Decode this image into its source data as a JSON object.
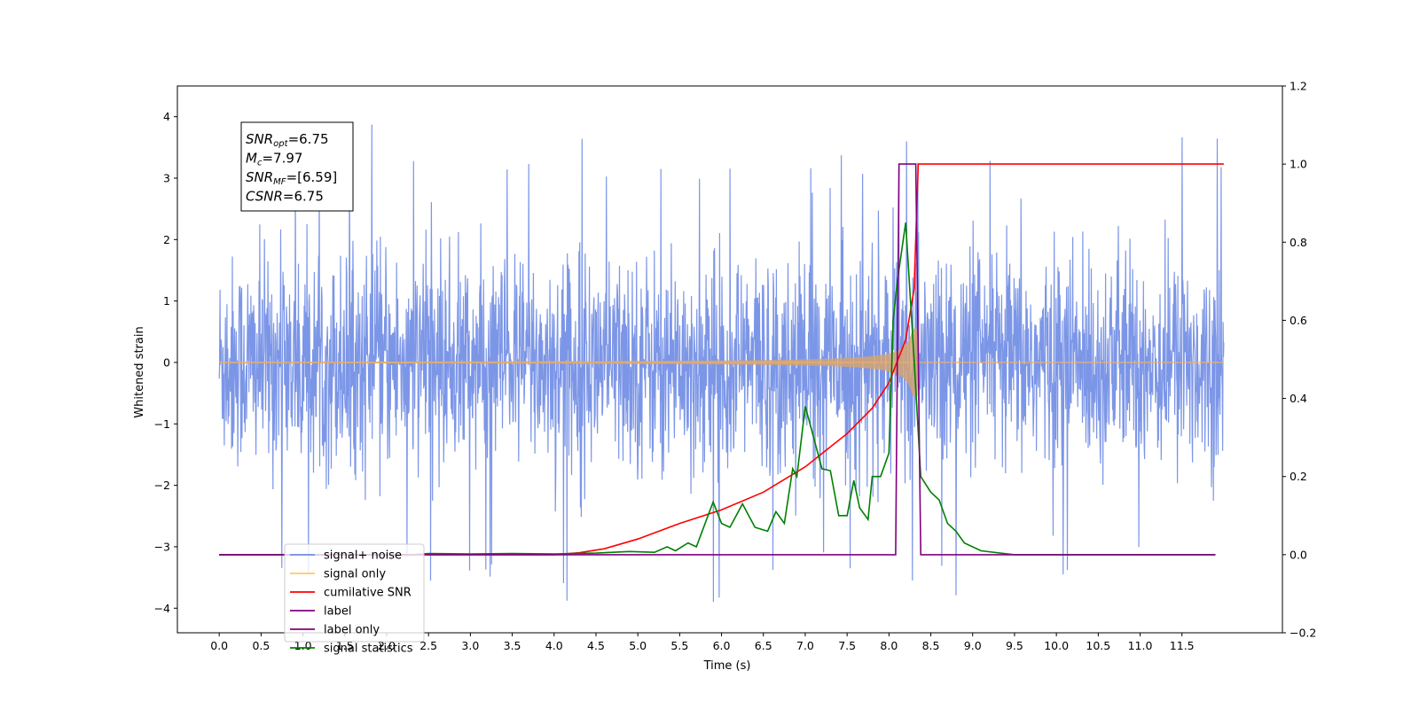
{
  "chart_data": {
    "type": "line",
    "xlabel": "Time (s)",
    "ylabel_left": "Whitened strain",
    "ylabel_right": "",
    "xlim": [
      -0.5,
      12.7
    ],
    "ylim_left": [
      -4.4,
      4.5
    ],
    "ylim_right": [
      -0.2,
      1.2
    ],
    "x_ticks": [
      "0.0",
      "0.5",
      "1.0",
      "1.5",
      "2.0",
      "2.5",
      "3.0",
      "3.5",
      "4.0",
      "4.5",
      "5.0",
      "5.5",
      "6.0",
      "6.5",
      "7.0",
      "7.5",
      "8.0",
      "8.5",
      "9.0",
      "9.5",
      "10.0",
      "10.5",
      "11.0",
      "11.5"
    ],
    "y_ticks_left": [
      "4",
      "3",
      "2",
      "1",
      "0",
      "−1",
      "−2",
      "−3",
      "−4"
    ],
    "y_ticks_right": [
      "1.2",
      "1.0",
      "0.8",
      "0.6",
      "0.4",
      "0.2",
      "0.0",
      "−0.2"
    ],
    "grid": false,
    "legend_position": "lower-left",
    "annotation": {
      "snr_opt": {
        "base": "SNR",
        "sub": "opt",
        "value": "=6.75"
      },
      "mc": {
        "base": "M",
        "sub": "c",
        "value": "=7.97"
      },
      "snr_mf": {
        "base": "SNR",
        "sub": "MF",
        "value": "=[6.59]"
      },
      "csnr": {
        "base": "CSNR",
        "sub": "",
        "value": "=6.75"
      }
    },
    "series": [
      {
        "name": "signal+ noise",
        "axis": "left",
        "color": "#7590e6",
        "description_kind": "noise",
        "x_range": [
          0.0,
          12.0
        ],
        "approx_std": 0.85,
        "peak_values": [
          4.1,
          -4.0
        ]
      },
      {
        "name": "signal only",
        "axis": "left",
        "color": "#f5a623",
        "description_kind": "chirp",
        "x_range": [
          0.0,
          12.0
        ],
        "merger_time": 8.35,
        "peak_amplitude": 0.55
      },
      {
        "name": "cumilative SNR",
        "axis": "right",
        "color": "#ff0000",
        "points": [
          [
            0.0,
            0.0
          ],
          [
            4.0,
            0.0
          ],
          [
            4.3,
            0.005
          ],
          [
            4.6,
            0.015
          ],
          [
            5.0,
            0.04
          ],
          [
            5.5,
            0.08
          ],
          [
            6.0,
            0.115
          ],
          [
            6.5,
            0.16
          ],
          [
            7.0,
            0.225
          ],
          [
            7.5,
            0.31
          ],
          [
            7.8,
            0.375
          ],
          [
            8.0,
            0.44
          ],
          [
            8.2,
            0.55
          ],
          [
            8.3,
            0.68
          ],
          [
            8.35,
            1.0
          ],
          [
            12.0,
            1.0
          ]
        ]
      },
      {
        "name": "label",
        "axis": "right",
        "color": "#800080",
        "points": [
          [
            0.0,
            0.0
          ],
          [
            8.08,
            0.0
          ],
          [
            8.12,
            1.0
          ],
          [
            8.32,
            1.0
          ],
          [
            8.38,
            0.0
          ],
          [
            11.9,
            0.0
          ]
        ]
      },
      {
        "name": "label only",
        "axis": "right",
        "color": "#800080",
        "hidden_behind_label": true,
        "points": []
      },
      {
        "name": "signal statistics",
        "axis": "right",
        "color": "#008000",
        "points": [
          [
            0.0,
            0.0
          ],
          [
            0.7,
            0.0
          ],
          [
            1.5,
            0.0
          ],
          [
            2.3,
            0.0
          ],
          [
            2.5,
            0.003
          ],
          [
            3.0,
            0.002
          ],
          [
            3.5,
            0.003
          ],
          [
            4.0,
            0.002
          ],
          [
            4.5,
            0.004
          ],
          [
            4.9,
            0.008
          ],
          [
            5.2,
            0.006
          ],
          [
            5.35,
            0.02
          ],
          [
            5.45,
            0.01
          ],
          [
            5.6,
            0.03
          ],
          [
            5.7,
            0.02
          ],
          [
            5.9,
            0.135
          ],
          [
            6.0,
            0.08
          ],
          [
            6.1,
            0.07
          ],
          [
            6.25,
            0.13
          ],
          [
            6.4,
            0.07
          ],
          [
            6.55,
            0.06
          ],
          [
            6.65,
            0.11
          ],
          [
            6.75,
            0.08
          ],
          [
            6.85,
            0.22
          ],
          [
            6.9,
            0.2
          ],
          [
            7.0,
            0.38
          ],
          [
            7.1,
            0.3
          ],
          [
            7.2,
            0.22
          ],
          [
            7.3,
            0.215
          ],
          [
            7.4,
            0.1
          ],
          [
            7.5,
            0.1
          ],
          [
            7.58,
            0.19
          ],
          [
            7.65,
            0.12
          ],
          [
            7.75,
            0.09
          ],
          [
            7.8,
            0.2
          ],
          [
            7.9,
            0.2
          ],
          [
            8.0,
            0.26
          ],
          [
            8.05,
            0.6
          ],
          [
            8.1,
            0.7
          ],
          [
            8.2,
            0.85
          ],
          [
            8.3,
            0.5
          ],
          [
            8.38,
            0.2
          ],
          [
            8.5,
            0.16
          ],
          [
            8.6,
            0.14
          ],
          [
            8.7,
            0.08
          ],
          [
            8.8,
            0.06
          ],
          [
            8.9,
            0.03
          ],
          [
            9.1,
            0.01
          ],
          [
            9.5,
            0.0
          ],
          [
            11.9,
            0.0
          ]
        ]
      }
    ]
  }
}
